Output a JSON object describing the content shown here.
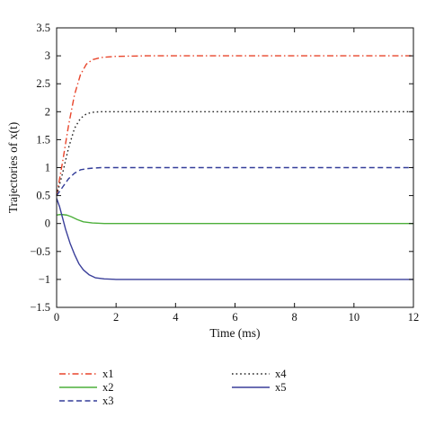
{
  "chart_data": {
    "type": "line",
    "xlabel": "Time (ms)",
    "ylabel": "Trajectories of x(t)",
    "xlim": [
      0,
      12
    ],
    "ylim": [
      -1.5,
      3.5
    ],
    "xticks": [
      0,
      2,
      4,
      6,
      8,
      10,
      12
    ],
    "yticks": [
      -1.5,
      -1,
      -0.5,
      0,
      0.5,
      1,
      1.5,
      2,
      2.5,
      3,
      3.5
    ],
    "ytick_labels": [
      "−1.5",
      "−1",
      "−0.5",
      "0",
      "0.5",
      "1",
      "1.5",
      "2",
      "2.5",
      "3",
      "3.5"
    ],
    "grid": false,
    "legend_position": "bottom",
    "series": [
      {
        "name": "x1",
        "color": "#e8452b",
        "dash": "dashdot",
        "x": [
          0,
          0.2,
          0.4,
          0.6,
          0.8,
          1.0,
          1.2,
          1.5,
          2.0,
          3.0,
          6.0,
          12.0
        ],
        "y": [
          0.5,
          1.1,
          1.75,
          2.3,
          2.66,
          2.85,
          2.93,
          2.97,
          2.99,
          3.0,
          3.0,
          3.0
        ]
      },
      {
        "name": "x2",
        "color": "#4caf3a",
        "dash": "solid",
        "x": [
          0,
          0.1,
          0.2,
          0.35,
          0.5,
          0.7,
          0.9,
          1.2,
          1.6,
          2.0,
          3.0,
          12.0
        ],
        "y": [
          0.15,
          0.16,
          0.16,
          0.15,
          0.12,
          0.07,
          0.03,
          0.01,
          0.0,
          0.0,
          0.0,
          0.0
        ]
      },
      {
        "name": "x3",
        "color": "#333d99",
        "dash": "dashed",
        "x": [
          0,
          0.2,
          0.4,
          0.6,
          0.8,
          1.0,
          1.2,
          1.5,
          2.0,
          3.0,
          12.0
        ],
        "y": [
          0.5,
          0.65,
          0.8,
          0.9,
          0.96,
          0.98,
          0.99,
          1.0,
          1.0,
          1.0,
          1.0
        ]
      },
      {
        "name": "x4",
        "color": "#222222",
        "dash": "dotted",
        "x": [
          0,
          0.2,
          0.4,
          0.6,
          0.8,
          1.0,
          1.2,
          1.5,
          2.0,
          3.0,
          12.0
        ],
        "y": [
          0.5,
          0.9,
          1.35,
          1.7,
          1.88,
          1.96,
          1.99,
          2.0,
          2.0,
          2.0,
          2.0
        ]
      },
      {
        "name": "x5",
        "color": "#3a3f9a",
        "dash": "solid",
        "x": [
          0,
          0.1,
          0.2,
          0.3,
          0.45,
          0.6,
          0.75,
          0.9,
          1.1,
          1.3,
          1.6,
          2.0,
          3.0,
          12.0
        ],
        "y": [
          0.45,
          0.3,
          0.1,
          -0.1,
          -0.35,
          -0.55,
          -0.72,
          -0.83,
          -0.92,
          -0.97,
          -0.99,
          -1.0,
          -1.0,
          -1.0
        ]
      }
    ]
  }
}
